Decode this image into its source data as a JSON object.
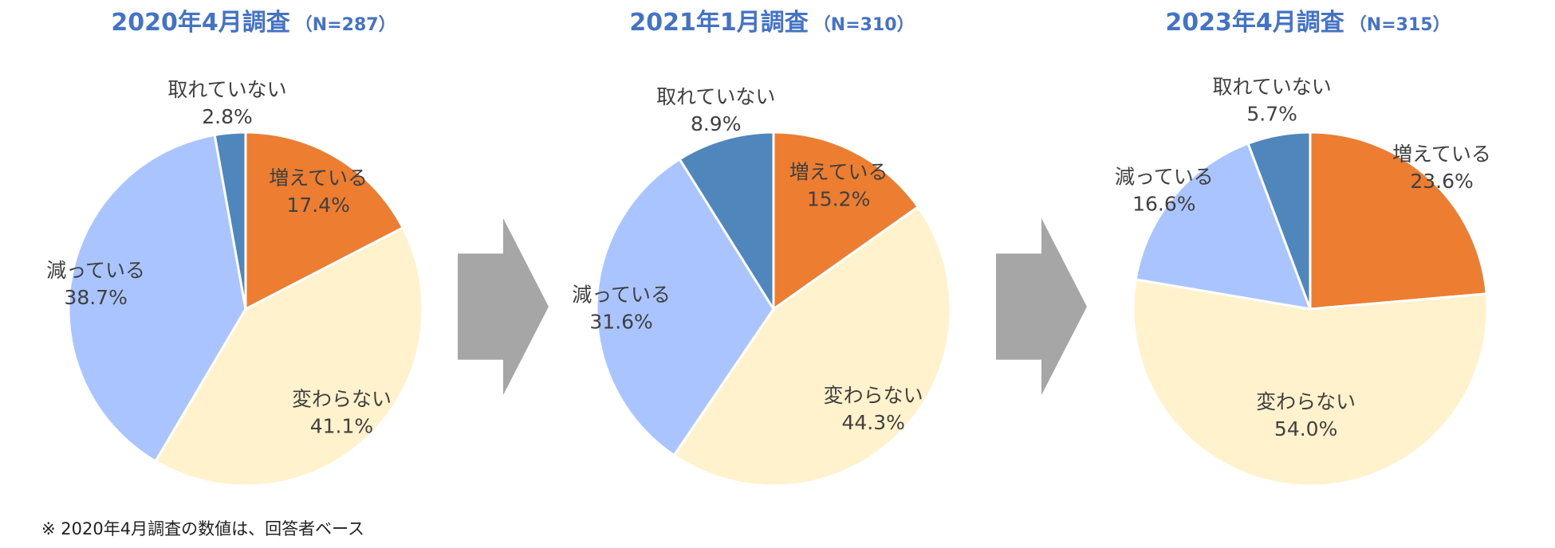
{
  "chart_data": [
    {
      "type": "pie",
      "title": "2020年4月調査",
      "n_label": "（N=287）",
      "slices": [
        {
          "label": "増えている",
          "value": 17.4,
          "value_label": "17.4%",
          "color": "#ed7d31"
        },
        {
          "label": "変わらない",
          "value": 41.1,
          "value_label": "41.1%",
          "color": "#fff2cc"
        },
        {
          "label": "減っている",
          "value": 38.7,
          "value_label": "38.7%",
          "color": "#a9c4ff"
        },
        {
          "label": "取れていない",
          "value": 2.8,
          "value_label": "2.8%",
          "color": "#4f87bd"
        }
      ]
    },
    {
      "type": "pie",
      "title": "2021年1月調査",
      "n_label": "（N=310）",
      "slices": [
        {
          "label": "増えている",
          "value": 15.2,
          "value_label": "15.2%",
          "color": "#ed7d31"
        },
        {
          "label": "変わらない",
          "value": 44.3,
          "value_label": "44.3%",
          "color": "#fff2cc"
        },
        {
          "label": "減っている",
          "value": 31.6,
          "value_label": "31.6%",
          "color": "#a9c4ff"
        },
        {
          "label": "取れていない",
          "value": 8.9,
          "value_label": "8.9%",
          "color": "#4f87bd"
        }
      ]
    },
    {
      "type": "pie",
      "title": "2023年4月調査",
      "n_label": "（N=315）",
      "slices": [
        {
          "label": "増えている",
          "value": 23.6,
          "value_label": "23.6%",
          "color": "#ed7d31"
        },
        {
          "label": "変わらない",
          "value": 54.0,
          "value_label": "54.0%",
          "color": "#fff2cc"
        },
        {
          "label": "減っている",
          "value": 16.6,
          "value_label": "16.6%",
          "color": "#a9c4ff"
        },
        {
          "label": "取れていない",
          "value": 5.7,
          "value_label": "5.7%",
          "color": "#4f87bd"
        }
      ]
    }
  ],
  "arrow_color": "#a6a6a6",
  "footnote": "※ 2020年4月調査の数値は、回答者ベース"
}
